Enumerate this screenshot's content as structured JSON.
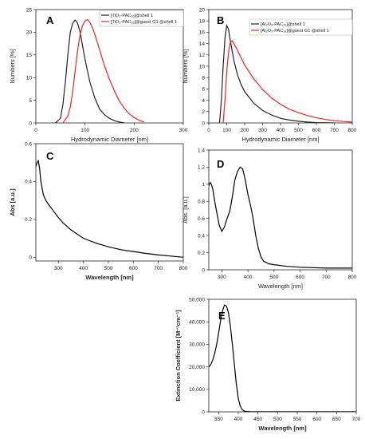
{
  "chart_data": [
    {
      "panel": "A",
      "type": "line",
      "xlabel": "Hydrodynamic Diameter [nm]",
      "ylabel": "Numbers [%]",
      "xlim": [
        0,
        300
      ],
      "ylim": [
        0,
        25
      ],
      "xticks": [
        0,
        100,
        200,
        300
      ],
      "yticks": [
        0,
        5,
        10,
        15,
        20,
        25
      ],
      "legend": "top-right",
      "series": [
        {
          "name": "[TiO₂-PAC₁₆]@shell 1",
          "color": "#222222",
          "x": [
            40,
            50,
            55,
            60,
            65,
            70,
            75,
            80,
            85,
            90,
            95,
            100,
            110,
            120,
            130,
            140,
            150,
            160,
            170,
            180
          ],
          "y": [
            0,
            1,
            4,
            9,
            15,
            20,
            22,
            22.7,
            22,
            20,
            17,
            14,
            9,
            5.5,
            3,
            1.8,
            1,
            0.5,
            0.2,
            0
          ]
        },
        {
          "name": "[TiO₂-PAC₁₆]@guest G1 @shell 1",
          "color": "#ee2222",
          "x": [
            55,
            65,
            70,
            75,
            80,
            85,
            90,
            95,
            100,
            105,
            110,
            115,
            120,
            130,
            140,
            150,
            160,
            170,
            180,
            190,
            200,
            210,
            220
          ],
          "y": [
            0,
            1.5,
            3.5,
            7,
            11.5,
            16,
            19.5,
            21.5,
            22.5,
            22.8,
            22.2,
            21,
            19.5,
            16,
            12.5,
            9.5,
            7,
            4.8,
            3.2,
            2,
            1.2,
            0.6,
            0.2
          ]
        }
      ]
    },
    {
      "panel": "B",
      "type": "line",
      "xlabel": "Hydrodynamic Diameter [nm]",
      "ylabel": "Numbers [%]",
      "xlim": [
        0,
        800
      ],
      "ylim": [
        0,
        20
      ],
      "xticks": [
        0,
        100,
        200,
        300,
        400,
        500,
        600,
        700,
        800
      ],
      "yticks": [
        0,
        2,
        4,
        6,
        8,
        10,
        12,
        14,
        16,
        18,
        20
      ],
      "legend": "top-right",
      "series": [
        {
          "name": "[Al₂O₃-PAC₁₆]@shell 1",
          "color": "#222222",
          "x": [
            60,
            70,
            80,
            90,
            100,
            110,
            120,
            140,
            160,
            180,
            200,
            250,
            300,
            350,
            400,
            450,
            500,
            550,
            600,
            700
          ],
          "y": [
            0,
            4,
            10,
            15,
            17.2,
            16.5,
            14.5,
            11,
            8.5,
            6.8,
            5.5,
            3.5,
            2.2,
            1.4,
            0.8,
            0.5,
            0.3,
            0.15,
            0.05,
            0
          ]
        },
        {
          "name": "[Al₂O₃-PAC₁₆]@guest G1 @shell 1",
          "color": "#ee2222",
          "x": [
            80,
            90,
            100,
            110,
            120,
            130,
            140,
            160,
            180,
            200,
            250,
            300,
            350,
            400,
            450,
            500,
            550,
            600,
            650,
            700,
            750,
            800
          ],
          "y": [
            0,
            4,
            9,
            12.5,
            14.2,
            14.5,
            14,
            12.8,
            11.5,
            10.2,
            7.8,
            5.9,
            4.4,
            3.3,
            2.4,
            1.8,
            1.3,
            0.9,
            0.6,
            0.4,
            0.25,
            0.15
          ]
        }
      ]
    },
    {
      "panel": "C",
      "type": "line",
      "xlabel": "Wavelength [nm]",
      "ylabel": "Abs [a.u.]",
      "xlim": [
        210,
        800
      ],
      "ylim": [
        -0.02,
        0.6
      ],
      "xticks": [
        300,
        400,
        500,
        600,
        700,
        800
      ],
      "yticks": [
        0.0,
        0.2,
        0.4,
        0.6
      ],
      "legend": "none",
      "series": [
        {
          "name": "",
          "color": "#000000",
          "x": [
            210,
            215,
            220,
            225,
            230,
            240,
            250,
            260,
            280,
            300,
            320,
            350,
            400,
            450,
            500,
            550,
            600,
            650,
            700,
            750,
            800
          ],
          "y": [
            0.48,
            0.5,
            0.51,
            0.47,
            0.4,
            0.33,
            0.3,
            0.28,
            0.245,
            0.21,
            0.18,
            0.145,
            0.1,
            0.075,
            0.055,
            0.04,
            0.03,
            0.02,
            0.012,
            0.006,
            0.0
          ]
        }
      ]
    },
    {
      "panel": "D",
      "type": "line",
      "xlabel": "Wavelength [nm]",
      "ylabel": "Abs. [a.u.]",
      "xlim": [
        250,
        800
      ],
      "ylim": [
        0,
        1.4
      ],
      "xticks": [
        300,
        400,
        500,
        600,
        700,
        800
      ],
      "yticks": [
        0.0,
        0.2,
        0.4,
        0.6,
        0.8,
        1.0,
        1.2,
        1.4
      ],
      "legend": "none",
      "series": [
        {
          "name": "",
          "color": "#000000",
          "x": [
            250,
            255,
            260,
            265,
            270,
            280,
            290,
            300,
            310,
            320,
            330,
            340,
            350,
            360,
            370,
            380,
            390,
            400,
            410,
            420,
            430,
            440,
            450,
            460,
            480,
            500,
            550,
            600,
            700,
            800
          ],
          "y": [
            0.98,
            1.02,
            1.0,
            0.95,
            0.85,
            0.68,
            0.52,
            0.45,
            0.5,
            0.6,
            0.68,
            0.85,
            1.05,
            1.15,
            1.2,
            1.18,
            1.05,
            0.88,
            0.75,
            0.6,
            0.4,
            0.25,
            0.15,
            0.1,
            0.07,
            0.06,
            0.04,
            0.03,
            0.02,
            0.02
          ]
        }
      ]
    },
    {
      "panel": "E",
      "type": "line",
      "xlabel": "Wavelength [nm]",
      "ylabel": "Extinction Coefficient [M⁻¹cm⁻¹]",
      "xlim": [
        325,
        700
      ],
      "ylim": [
        0,
        50000
      ],
      "xticks": [
        350,
        400,
        450,
        500,
        550,
        600,
        650,
        700
      ],
      "yticks": [
        0,
        10000,
        20000,
        30000,
        40000,
        50000
      ],
      "ytick_labels": [
        "0",
        "10,000",
        "20,000",
        "30,000",
        "40,000",
        "50,000"
      ],
      "legend": "none",
      "series": [
        {
          "name": "",
          "color": "#000000",
          "x": [
            325,
            330,
            335,
            340,
            345,
            350,
            355,
            360,
            365,
            370,
            375,
            380,
            385,
            390,
            395,
            400,
            405,
            410,
            415,
            420,
            430,
            450,
            500,
            700
          ],
          "y": [
            20000,
            21000,
            23000,
            26000,
            30000,
            35000,
            40500,
            45000,
            47500,
            47000,
            44000,
            38000,
            30000,
            21000,
            12500,
            6000,
            2500,
            1000,
            400,
            150,
            50,
            0,
            0,
            0
          ]
        }
      ]
    }
  ]
}
